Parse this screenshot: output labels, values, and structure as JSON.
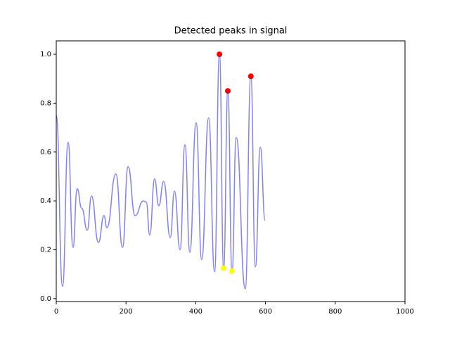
{
  "chart_data": {
    "type": "line",
    "title": "Detected peaks in signal",
    "xlim": [
      0,
      1000
    ],
    "ylim": [
      -0.012,
      1.055
    ],
    "xticks": [
      0,
      200,
      400,
      600,
      800,
      1000
    ],
    "yticks": [
      {
        "value": 0,
        "label": "0.0"
      },
      {
        "value": 0.2,
        "label": "0.2"
      },
      {
        "value": 0.4,
        "label": "0.4"
      },
      {
        "value": 0.6,
        "label": "0.6"
      },
      {
        "value": 0.8,
        "label": "0.8"
      },
      {
        "value": 1.0,
        "label": "1.0"
      }
    ],
    "series": [
      {
        "kind": "line",
        "color": "#8080ff",
        "x": [
          0,
          18,
          34,
          48,
          60,
          73,
          89,
          101,
          121,
          137,
          145,
          171,
          190,
          206,
          226,
          250,
          258,
          268,
          282,
          294,
          308,
          327,
          339,
          355,
          369,
          383,
          401,
          417,
          437,
          454,
          468,
          480,
          492,
          504,
          516,
          542,
          558,
          571,
          585,
          599
        ],
        "values": [
          0.75,
          0.05,
          0.64,
          0.21,
          0.45,
          0.37,
          0.28,
          0.42,
          0.23,
          0.34,
          0.29,
          0.51,
          0.21,
          0.54,
          0.34,
          0.4,
          0.395,
          0.26,
          0.49,
          0.38,
          0.48,
          0.25,
          0.44,
          0.2,
          0.63,
          0.19,
          0.72,
          0.16,
          0.74,
          0.11,
          1.0,
          0.125,
          0.85,
          0.11,
          0.66,
          0.04,
          0.91,
          0.13,
          0.62,
          0.32
        ]
      },
      {
        "kind": "scatter",
        "color": "#ff0000",
        "x": [
          468,
          492,
          558
        ],
        "values": [
          1.0,
          0.85,
          0.91
        ]
      },
      {
        "kind": "scatter",
        "color": "#ffff00",
        "x": [
          480,
          504
        ],
        "values": [
          0.124,
          0.112
        ]
      }
    ]
  }
}
